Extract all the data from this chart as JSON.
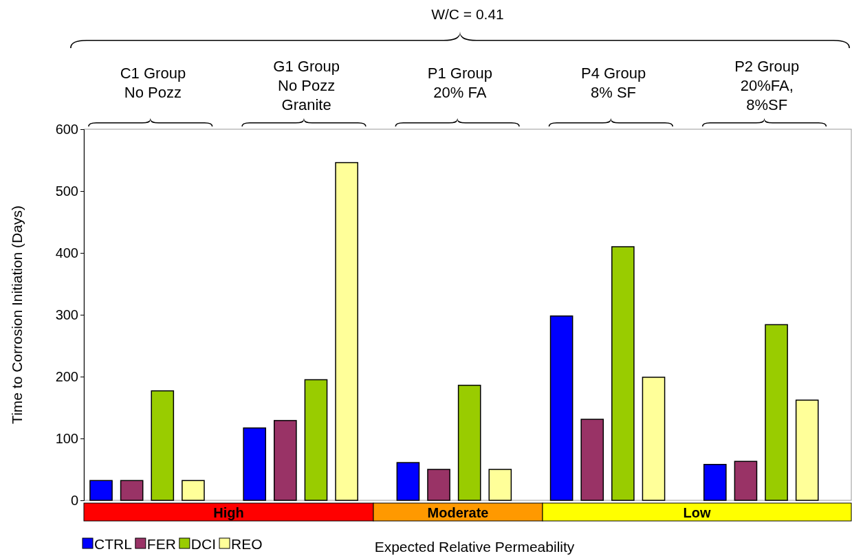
{
  "chart_data": {
    "type": "bar",
    "title": "W/C = 0.41",
    "ylabel": "Time to Corrosion Initiation (Days)",
    "xlabel": "Expected Relative Permeability",
    "categories": [
      "C1 Group\nNo Pozz",
      "G1 Group\nNo Pozz\nGranite",
      "P1 Group\n20% FA",
      "P4 Group\n8% SF",
      "P2 Group\n20%FA,\n8%SF"
    ],
    "series": [
      {
        "name": "CTRL",
        "color": "#0000ff",
        "values": [
          32,
          117,
          61,
          298,
          58
        ]
      },
      {
        "name": "FER",
        "color": "#993366",
        "values": [
          32,
          129,
          50,
          131,
          63
        ]
      },
      {
        "name": "DCI",
        "color": "#99cc00",
        "values": [
          177,
          195,
          186,
          410,
          284
        ]
      },
      {
        "name": "REO",
        "color": "#ffff99",
        "values": [
          32,
          546,
          50,
          199,
          162
        ]
      }
    ],
    "annotations": [
      "High",
      "Moderate",
      "Low"
    ],
    "ylim": [
      0,
      600
    ],
    "yticks": [
      0,
      100,
      200,
      300,
      400,
      500,
      600
    ],
    "grid": false,
    "legend": "bottom left"
  }
}
